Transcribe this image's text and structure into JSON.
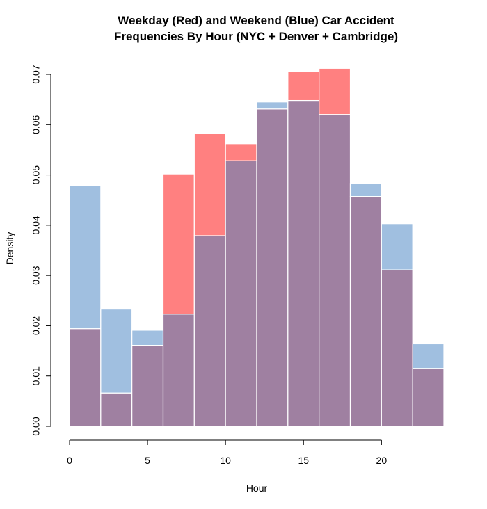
{
  "chart_data": {
    "type": "bar",
    "title_lines": [
      "Weekday (Red) and Weekend (Blue) Car Accident",
      "Frequencies By Hour (NYC + Denver + Cambridge)"
    ],
    "xlabel": "Hour",
    "ylabel": "Density",
    "xlim": [
      0,
      24
    ],
    "ylim": [
      0,
      0.07
    ],
    "x_ticks": [
      0,
      5,
      10,
      15,
      20
    ],
    "y_ticks": [
      0.0,
      0.01,
      0.02,
      0.03,
      0.04,
      0.05,
      0.06,
      0.07
    ],
    "y_tick_labels": [
      "0.00",
      "0.01",
      "0.02",
      "0.03",
      "0.04",
      "0.05",
      "0.06",
      "0.07"
    ],
    "grid": false,
    "bin_edges": [
      0,
      2,
      4,
      6,
      8,
      10,
      12,
      14,
      16,
      18,
      20,
      22,
      24
    ],
    "series": [
      {
        "values": [
          0.0194,
          0.0066,
          0.0161,
          0.0502,
          0.0582,
          0.0562,
          0.0631,
          0.0706,
          0.0712,
          0.0457,
          0.0311,
          0.0115
        ],
        "color": "#ff8080"
      },
      {
        "values": [
          0.0479,
          0.0233,
          0.0191,
          0.0223,
          0.0379,
          0.0528,
          0.0645,
          0.0648,
          0.062,
          0.0483,
          0.0403,
          0.0164
        ],
        "color": "#a0bfe0"
      }
    ],
    "overlap_color": "#9f80a1"
  }
}
